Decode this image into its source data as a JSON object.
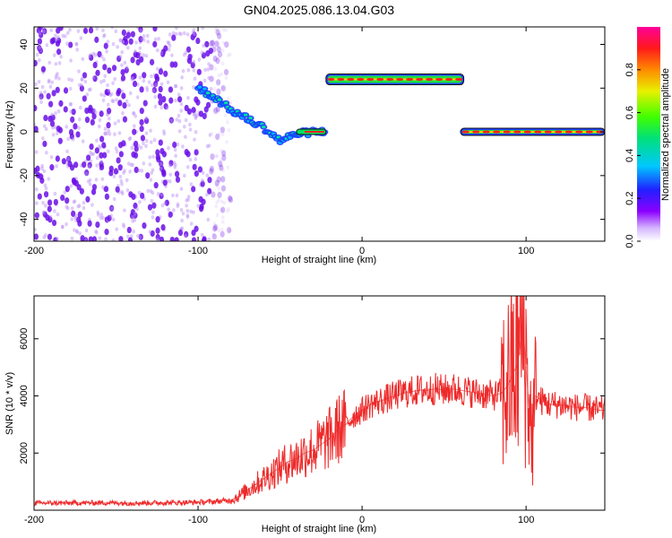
{
  "title": "GN04.2025.086.13.04.G03",
  "colors": {
    "line": "#ee2a2a",
    "scatter": "#6a0fe8",
    "axis": "#000000",
    "background": "#ffffff"
  },
  "chart_data": [
    {
      "type": "heatmap",
      "xlabel": "Height of straight line (km)",
      "ylabel": "Frequency (Hz)",
      "xlim": [
        -200,
        148
      ],
      "ylim": [
        -50,
        48
      ],
      "x_ticks": [
        -200,
        -100,
        0,
        100
      ],
      "x_tick_labels": [
        "-200",
        "-100",
        "0",
        "100"
      ],
      "y_ticks": [
        -40,
        -20,
        0,
        20,
        40
      ],
      "y_tick_labels": [
        "-40",
        "-20",
        "0",
        "20",
        "40"
      ],
      "grid": false,
      "colorbar": {
        "label": "Normalized spectral amplitude",
        "range": [
          0,
          1
        ],
        "ticks": [
          0,
          0.2,
          0.4,
          0.6,
          0.8
        ],
        "tick_labels": [
          "0.0",
          "0.2",
          "0.4",
          "0.6",
          "0.8"
        ],
        "colormap": "rainbow (white-purple-blue-cyan-green-yellow-red-magenta)"
      },
      "features": [
        {
          "kind": "noise-cloud",
          "x_range": [
            -200,
            -80
          ],
          "y_range": [
            -50,
            48
          ],
          "amplitude": 0.1
        },
        {
          "kind": "descending-trace",
          "points": [
            [
              -100,
              20
            ],
            [
              -90,
              16
            ],
            [
              -80,
              10
            ],
            [
              -70,
              6
            ],
            [
              -60,
              2
            ],
            [
              -50,
              -4
            ],
            [
              -40,
              -1
            ],
            [
              -30,
              0
            ],
            [
              -22,
              0
            ]
          ],
          "amplitude": 0.55
        },
        {
          "kind": "band",
          "x_range": [
            -22,
            62
          ],
          "y": 24,
          "amplitude": 0.85
        },
        {
          "kind": "band",
          "x_range": [
            60,
            148
          ],
          "y": 0,
          "amplitude": 0.9
        }
      ]
    },
    {
      "type": "line",
      "xlabel": "Height of straight line (km)",
      "ylabel": "SNR (10 * v/v)",
      "xlim": [
        -200,
        148
      ],
      "ylim": [
        0,
        7500
      ],
      "x_ticks": [
        -200,
        -100,
        0,
        100
      ],
      "x_tick_labels": [
        "-200",
        "-100",
        "0",
        "100"
      ],
      "y_ticks": [
        2000,
        4000,
        6000
      ],
      "y_tick_labels": [
        "2000",
        "4000",
        "6000"
      ],
      "grid": false,
      "series": [
        {
          "x": [
            -200,
            -180,
            -160,
            -140,
            -120,
            -100,
            -90,
            -80,
            -75,
            -70,
            -65,
            -60,
            -55,
            -50,
            -45,
            -40,
            -35,
            -30,
            -25,
            -20,
            -15,
            -10,
            -5,
            0,
            5,
            10,
            15,
            20,
            25,
            30,
            35,
            40,
            45,
            50,
            55,
            60,
            65,
            70,
            75,
            80,
            85,
            88,
            90,
            92,
            94,
            96,
            98,
            100,
            102,
            104,
            106,
            110,
            115,
            120,
            125,
            130,
            135,
            140,
            145,
            148
          ],
          "y": [
            250,
            250,
            260,
            250,
            260,
            280,
            300,
            350,
            500,
            700,
            900,
            1100,
            1300,
            1500,
            1700,
            1800,
            2000,
            2100,
            2300,
            2500,
            2800,
            3000,
            3300,
            3500,
            3700,
            3800,
            3900,
            4000,
            4100,
            4150,
            4200,
            4200,
            4250,
            4200,
            4250,
            4200,
            4150,
            4100,
            4050,
            4000,
            4100,
            4300,
            4500,
            4800,
            5000,
            5500,
            6500,
            5000,
            3500,
            2500,
            4000,
            3800,
            3700,
            3700,
            3650,
            3600,
            3600,
            3550,
            3500,
            3500
          ]
        }
      ]
    }
  ]
}
